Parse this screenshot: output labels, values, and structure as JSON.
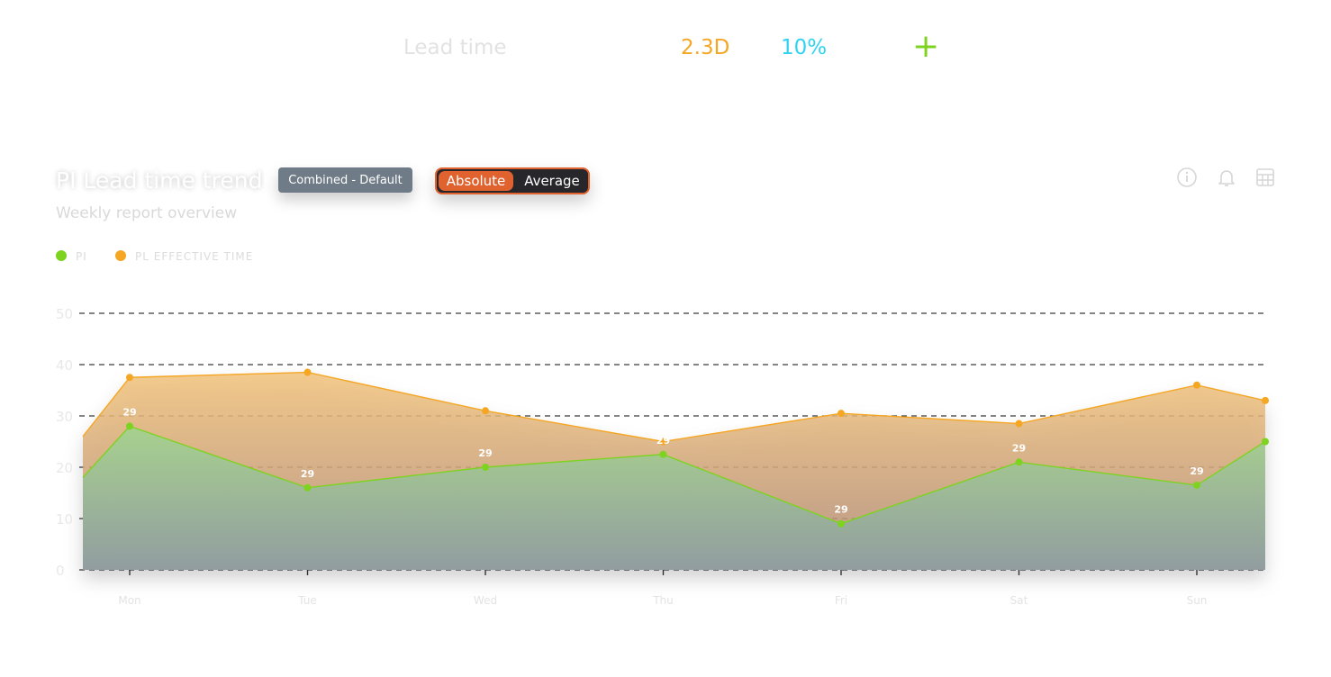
{
  "kpi": {
    "label": "Lead time",
    "value": "2.3D",
    "percent": "10%",
    "add_symbol": "+"
  },
  "header": {
    "title": "PI Lead time trend",
    "subtitle": "Weekly report overview",
    "combined_button": "Combined - Default",
    "toggle": {
      "active": "Absolute",
      "inactive": "Average"
    },
    "icons": [
      "info-icon",
      "bell-icon",
      "table-icon"
    ]
  },
  "colors": {
    "pi": "#7ed321",
    "effective": "#f5a623",
    "accent": "#e0622f",
    "percent": "#2fd3f1"
  },
  "chart_data": {
    "type": "area",
    "categories": [
      "Mon",
      "Tue",
      "Wed",
      "Thu",
      "Fri",
      "Sat",
      "Sun"
    ],
    "ylim": [
      0,
      50
    ],
    "yticks": [
      0,
      10,
      20,
      30,
      40,
      50
    ],
    "grid": true,
    "legend": "top-left",
    "series": [
      {
        "name": "PI",
        "values": [
          28,
          16,
          20,
          22.5,
          9,
          21,
          16.5
        ],
        "start": 18,
        "end": 25,
        "labels": [
          "29",
          "29",
          "29",
          "29",
          "29",
          "29",
          "29"
        ]
      },
      {
        "name": "PL EFFECTIVE TIME",
        "values": [
          37.5,
          38.5,
          31,
          25,
          30.5,
          28.5,
          36
        ],
        "start": 26,
        "end": 33
      }
    ]
  }
}
